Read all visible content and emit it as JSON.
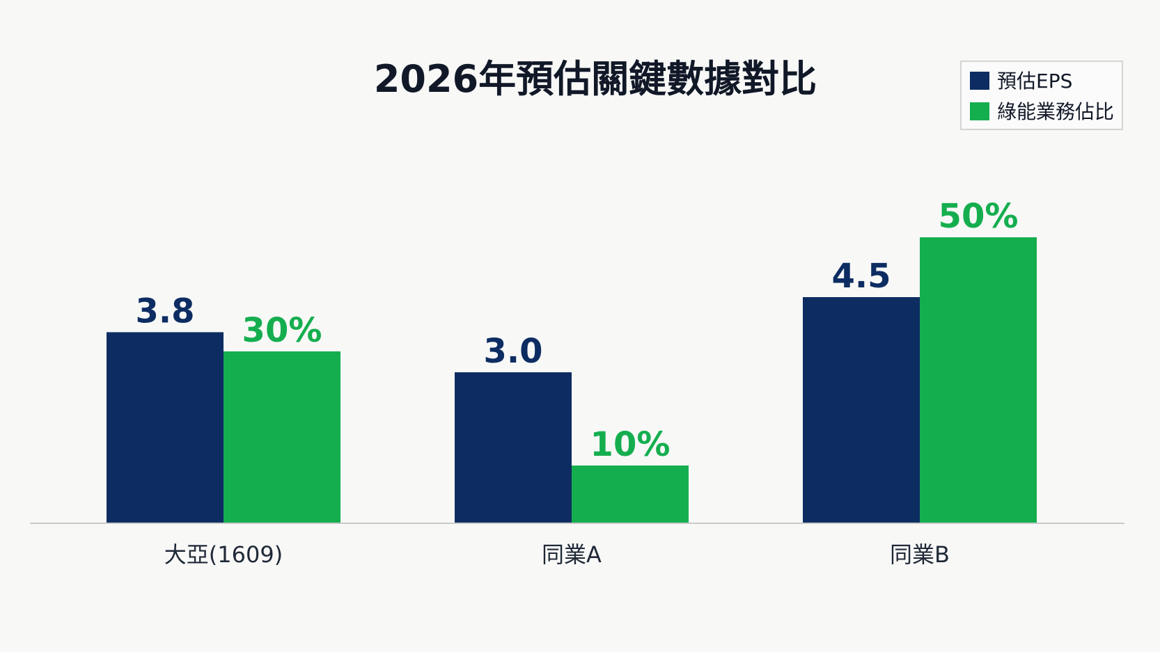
{
  "chart_data": {
    "type": "bar",
    "title": "2026年預估關鍵數據對比",
    "categories": [
      "大亞(1609)",
      "同業A",
      "同業B"
    ],
    "series": [
      {
        "name": "預估EPS",
        "values": [
          3.8,
          3.0,
          4.5
        ],
        "labels": [
          "3.8",
          "3.0",
          "4.5"
        ],
        "color": "#0d2d62"
      },
      {
        "name": "綠能業務佔比",
        "values": [
          30,
          10,
          50
        ],
        "labels": [
          "30%",
          "10%",
          "50%"
        ],
        "color": "#15ae4f"
      }
    ],
    "legend_position": "top-right",
    "grid": false,
    "label_color": "#0d2d62",
    "label_color_alt": "#15ae4f",
    "axis_color": "#c9c9c9"
  }
}
